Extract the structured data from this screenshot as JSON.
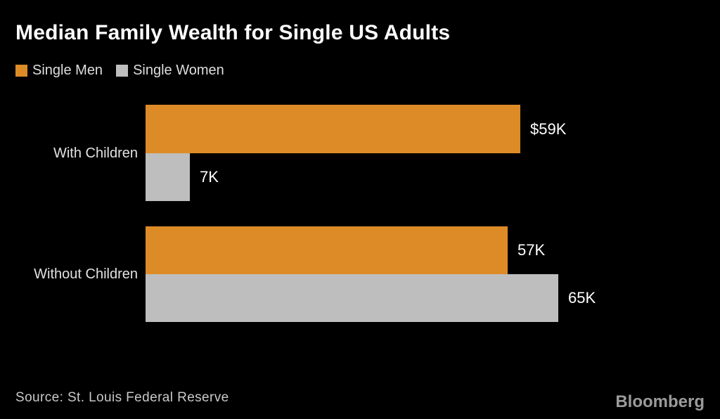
{
  "chart": {
    "title": "Median Family Wealth for Single US Adults",
    "legend": [
      {
        "label": "Single Men",
        "color": "#dd8b27"
      },
      {
        "label": "Single Women",
        "color": "#bebebe"
      }
    ],
    "source": "Source: St. Louis Federal Reserve",
    "brand": "Bloomberg",
    "background_color": "#000000",
    "title_color": "#ffffff"
  },
  "chart_data": {
    "type": "bar",
    "orientation": "horizontal",
    "title": "Median Family Wealth for Single US Adults",
    "unit": "thousand USD",
    "categories": [
      "With Children",
      "Without Children"
    ],
    "series": [
      {
        "name": "Single Men",
        "color": "#dd8b27",
        "values": [
          59,
          57
        ],
        "value_labels": [
          "$59K",
          "57K"
        ]
      },
      {
        "name": "Single Women",
        "color": "#bebebe",
        "values": [
          7,
          65
        ],
        "value_labels": [
          "7K",
          "65K"
        ]
      }
    ],
    "xlim": [
      0,
      90
    ],
    "grid": false,
    "axis_lines": false,
    "legend_position": "top-left",
    "source": "Source: St. Louis Federal Reserve"
  }
}
